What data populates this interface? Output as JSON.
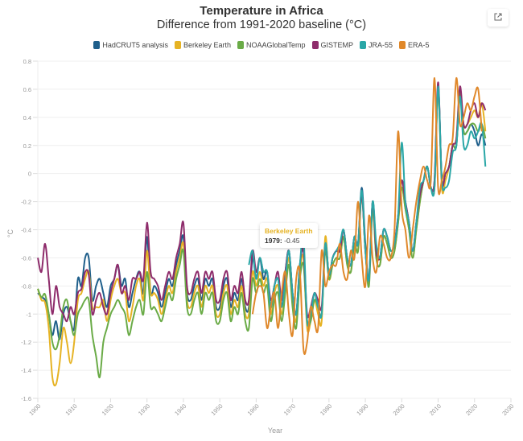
{
  "header": {
    "title": "Temperature in Africa",
    "subtitle": "Difference from 1991-2020 baseline (°C)",
    "export_icon": "external-link-icon"
  },
  "tooltip": {
    "series": "Berkeley Earth",
    "year_label": "1979:",
    "value": "-0.45",
    "color": "#e6b324"
  },
  "chart_data": {
    "type": "line",
    "title": "Temperature in Africa",
    "subtitle": "Difference from 1991-2020 baseline (°C)",
    "xlabel": "Year",
    "ylabel": "°C",
    "xlim": [
      1900,
      2030
    ],
    "ylim": [
      -1.6,
      0.8
    ],
    "xticks": [
      1900,
      1910,
      1920,
      1930,
      1940,
      1950,
      1960,
      1970,
      1980,
      1990,
      2000,
      2010,
      2020,
      2030
    ],
    "xtick_labels": [
      "1900",
      "1910",
      "1920",
      "1930",
      "1940",
      "1950",
      "1960",
      "1970",
      "1980",
      "1990",
      "2000",
      "2010",
      "2020",
      "2030"
    ],
    "yticks": [
      0.8,
      0.6,
      0.4,
      0.2,
      0,
      -0.2,
      -0.4,
      -0.6,
      -0.8,
      -1,
      -1.2,
      -1.4,
      -1.6
    ],
    "ytick_labels": [
      "0.8",
      "0.6",
      "0.4",
      "0.2",
      "0",
      "-0.2",
      "-0.4",
      "-0.6",
      "-0.8",
      "-1",
      "-1.2",
      "-1.4",
      "-1.6"
    ],
    "grid": true,
    "legend_position": "top",
    "series": [
      {
        "name": "HadCRUT5 analysis",
        "color": "#1f5f8b",
        "x_start": 1900,
        "values": [
          -0.85,
          -0.88,
          -0.9,
          -1.0,
          -1.15,
          -1.05,
          -1.18,
          -1.0,
          -0.95,
          -1.05,
          -1.1,
          -0.75,
          -0.8,
          -0.6,
          -0.6,
          -0.9,
          -0.8,
          -0.75,
          -0.85,
          -0.95,
          -0.8,
          -0.75,
          -0.65,
          -0.8,
          -0.75,
          -0.95,
          -0.85,
          -0.75,
          -0.7,
          -0.85,
          -0.45,
          -0.85,
          -0.8,
          -0.85,
          -0.95,
          -0.85,
          -0.75,
          -0.8,
          -0.65,
          -0.55,
          -0.45,
          -0.85,
          -0.9,
          -0.8,
          -0.75,
          -0.9,
          -0.75,
          -0.8,
          -0.75,
          -0.95,
          -0.95,
          -0.8,
          -0.75,
          -0.95,
          -0.85,
          -0.9,
          -0.75,
          -0.95,
          -0.95,
          -0.6,
          -0.75,
          -0.6,
          -0.75,
          -0.7,
          -0.95,
          -0.8,
          -0.75,
          -0.95,
          -0.7,
          -0.55,
          -0.85,
          -1.0,
          -0.65,
          -0.55,
          -1.05,
          -1.0,
          -0.85,
          -0.95,
          -1.0,
          -0.5,
          -0.72,
          -0.6,
          -0.55,
          -0.55,
          -0.4,
          -0.6,
          -0.65,
          -0.45,
          -0.5,
          -0.1,
          -0.5,
          -0.75,
          -0.2,
          -0.55,
          -0.6,
          -0.4,
          -0.45,
          -0.55,
          -0.5,
          -0.3,
          -0.05,
          -0.2,
          -0.35,
          -0.55,
          -0.35,
          -0.15,
          -0.05,
          0.05,
          -0.1,
          -0.05,
          0.62,
          -0.05,
          0.0,
          0.05,
          0.2,
          0.2,
          0.55,
          0.3,
          0.3,
          0.35,
          0.3,
          0.2,
          0.28,
          0.2
        ]
      },
      {
        "name": "Berkeley Earth",
        "color": "#e6b324",
        "x_start": 1900,
        "values": [
          -0.82,
          -0.9,
          -0.92,
          -1.1,
          -1.45,
          -1.5,
          -1.35,
          -1.1,
          -1.2,
          -1.35,
          -1.2,
          -0.9,
          -0.85,
          -0.75,
          -0.7,
          -0.95,
          -0.95,
          -0.95,
          -0.9,
          -1.05,
          -0.9,
          -0.8,
          -0.75,
          -0.85,
          -0.85,
          -1.05,
          -0.95,
          -0.8,
          -0.75,
          -0.9,
          -0.55,
          -0.85,
          -0.85,
          -0.9,
          -1.0,
          -0.9,
          -0.8,
          -0.85,
          -0.7,
          -0.6,
          -0.5,
          -0.9,
          -0.95,
          -0.85,
          -0.8,
          -0.95,
          -0.8,
          -0.85,
          -0.8,
          -1.0,
          -1.0,
          -0.85,
          -0.8,
          -1.0,
          -0.9,
          -0.95,
          -0.8,
          -1.0,
          -1.0,
          -0.7,
          -0.8,
          -0.7,
          -0.8,
          -0.75,
          -1.0,
          -0.85,
          -0.8,
          -1.0,
          -0.8,
          -0.6,
          -0.9,
          -1.05,
          -0.7,
          -0.6,
          -1.1,
          -1.05,
          -0.9,
          -1.0,
          -1.05,
          -0.45,
          -0.75,
          -0.65,
          -0.6,
          -0.6,
          -0.45,
          -0.65,
          -0.7,
          -0.5,
          -0.55,
          -0.15,
          -0.55,
          -0.75,
          -0.25,
          -0.6,
          -0.65,
          -0.45,
          -0.5,
          -0.6,
          -0.55,
          -0.35,
          -0.1,
          -0.25,
          -0.4,
          -0.6,
          -0.4,
          -0.2,
          -0.05,
          0.05,
          -0.1,
          -0.1,
          0.6,
          -0.1,
          -0.05,
          0.05,
          0.2,
          0.25,
          0.6,
          0.35,
          0.35,
          0.4,
          0.45,
          0.4,
          0.5,
          0.3
        ]
      },
      {
        "name": "NOAAGlobalTemp",
        "color": "#6aab47",
        "x_start": 1900,
        "values": [
          -0.82,
          -0.88,
          -0.86,
          -1.0,
          -1.2,
          -1.25,
          -1.15,
          -0.95,
          -0.9,
          -1.05,
          -1.15,
          -1.0,
          -0.95,
          -0.9,
          -0.9,
          -1.15,
          -1.3,
          -1.45,
          -1.2,
          -1.1,
          -1.0,
          -0.95,
          -0.9,
          -0.95,
          -1.0,
          -1.15,
          -1.05,
          -0.95,
          -0.9,
          -1.0,
          -0.7,
          -0.95,
          -0.95,
          -1.0,
          -1.05,
          -0.95,
          -0.85,
          -0.9,
          -0.75,
          -0.65,
          -0.55,
          -0.95,
          -1.0,
          -0.9,
          -0.85,
          -1.0,
          -0.85,
          -0.9,
          -0.85,
          -1.05,
          -1.05,
          -0.9,
          -0.85,
          -1.05,
          -0.95,
          -1.0,
          -0.85,
          -1.05,
          -1.1,
          -0.75,
          -0.85,
          -0.75,
          -0.85,
          -0.8,
          -1.05,
          -0.9,
          -0.85,
          -1.05,
          -0.85,
          -0.65,
          -0.95,
          -1.1,
          -0.75,
          -0.65,
          -1.05,
          -1.05,
          -0.9,
          -0.95,
          -1.0,
          -0.55,
          -0.75,
          -0.65,
          -0.6,
          -0.6,
          -0.45,
          -0.65,
          -0.7,
          -0.5,
          -0.55,
          -0.15,
          -0.55,
          -0.8,
          -0.25,
          -0.6,
          -0.65,
          -0.45,
          -0.5,
          -0.6,
          -0.55,
          -0.35,
          -0.1,
          -0.25,
          -0.4,
          -0.6,
          -0.4,
          -0.2,
          -0.05,
          0.05,
          -0.1,
          -0.1,
          0.6,
          -0.05,
          0.0,
          0.05,
          0.2,
          0.2,
          0.58,
          0.3,
          0.3,
          0.35,
          0.35,
          0.3,
          0.35,
          0.25
        ]
      },
      {
        "name": "GISTEMP",
        "color": "#8e2c6b",
        "x_start": 1900,
        "values": [
          -0.6,
          -0.7,
          -0.5,
          -0.75,
          -1.0,
          -0.8,
          -0.95,
          -1.0,
          -1.05,
          -0.95,
          -1.0,
          -0.85,
          -0.82,
          -0.7,
          -0.72,
          -1.0,
          -0.9,
          -0.85,
          -0.95,
          -1.0,
          -0.85,
          -0.75,
          -0.65,
          -0.85,
          -0.8,
          -0.9,
          -0.75,
          -0.75,
          -0.7,
          -0.75,
          -0.35,
          -0.7,
          -0.75,
          -0.8,
          -0.9,
          -0.8,
          -0.7,
          -0.75,
          -0.6,
          -0.5,
          -0.35,
          -0.8,
          -0.85,
          -0.75,
          -0.7,
          -0.85,
          -0.7,
          -0.75,
          -0.7,
          -0.9,
          -0.9,
          -0.75,
          -0.7,
          -0.9,
          -0.8,
          -0.85,
          -0.7,
          -0.9,
          -0.9,
          -0.55,
          -0.7,
          -0.6,
          -0.7,
          -0.7,
          -0.9,
          -0.8,
          -0.7,
          -0.9,
          -0.7,
          -0.55,
          -0.85,
          -1.0,
          -0.65,
          -0.55,
          -1.0,
          -0.95,
          -0.85,
          -0.9,
          -0.95,
          -0.5,
          -0.72,
          -0.6,
          -0.55,
          -0.55,
          -0.4,
          -0.6,
          -0.65,
          -0.45,
          -0.5,
          -0.15,
          -0.55,
          -0.75,
          -0.2,
          -0.55,
          -0.6,
          -0.4,
          -0.45,
          -0.55,
          -0.5,
          -0.3,
          -0.05,
          -0.2,
          -0.35,
          -0.55,
          -0.35,
          -0.15,
          -0.05,
          0.05,
          -0.1,
          -0.05,
          0.65,
          -0.05,
          0.0,
          0.05,
          0.2,
          0.25,
          0.62,
          0.35,
          0.35,
          0.45,
          0.5,
          0.4,
          0.5,
          0.45
        ]
      },
      {
        "name": "JRA-55",
        "color": "#2aa7a7",
        "x_start": 1958,
        "values": [
          -0.65,
          -0.55,
          -0.75,
          -0.6,
          -0.7,
          -0.7,
          -0.95,
          -0.8,
          -0.75,
          -0.95,
          -0.75,
          -0.55,
          -0.85,
          -1.0,
          -0.65,
          -0.45,
          -1.05,
          -1.0,
          -0.85,
          -0.95,
          -1.0,
          -0.5,
          -0.72,
          -0.6,
          -0.55,
          -0.5,
          -0.4,
          -0.6,
          -0.65,
          -0.45,
          -0.5,
          -0.12,
          -0.55,
          -0.75,
          -0.2,
          -0.5,
          -0.6,
          -0.4,
          -0.45,
          -0.55,
          -0.5,
          -0.3,
          0.22,
          -0.2,
          -0.35,
          -0.55,
          -0.35,
          -0.1,
          -0.05,
          0.05,
          -0.1,
          -0.1,
          0.62,
          -0.05,
          -0.1,
          -0.05,
          0.15,
          0.2,
          0.55,
          0.2,
          0.2,
          0.3,
          0.25,
          0.3,
          0.35,
          0.05
        ]
      },
      {
        "name": "ERA-5",
        "color": "#e0882a",
        "x_start": 1959,
        "values": [
          -1.0,
          -0.85,
          -0.8,
          -0.85,
          -1.1,
          -0.95,
          -0.85,
          -1.1,
          -0.85,
          -0.7,
          -1.0,
          -1.15,
          -0.75,
          -0.7,
          -1.25,
          -1.2,
          -0.95,
          -1.05,
          -1.1,
          -0.55,
          -0.8,
          -0.7,
          -0.65,
          -0.65,
          -0.5,
          -0.7,
          -0.75,
          -0.55,
          -0.6,
          -0.2,
          -0.6,
          -0.8,
          -0.3,
          -0.6,
          -0.7,
          -0.45,
          -0.5,
          -0.6,
          -0.6,
          -0.4,
          0.3,
          -0.25,
          -0.4,
          -0.6,
          -0.4,
          -0.2,
          -0.05,
          0.05,
          -0.05,
          -0.05,
          0.68,
          -0.1,
          -0.05,
          0.05,
          0.2,
          0.25,
          0.68,
          0.35,
          0.4,
          0.5,
          0.45,
          0.55,
          0.6,
          0.3
        ]
      }
    ]
  }
}
